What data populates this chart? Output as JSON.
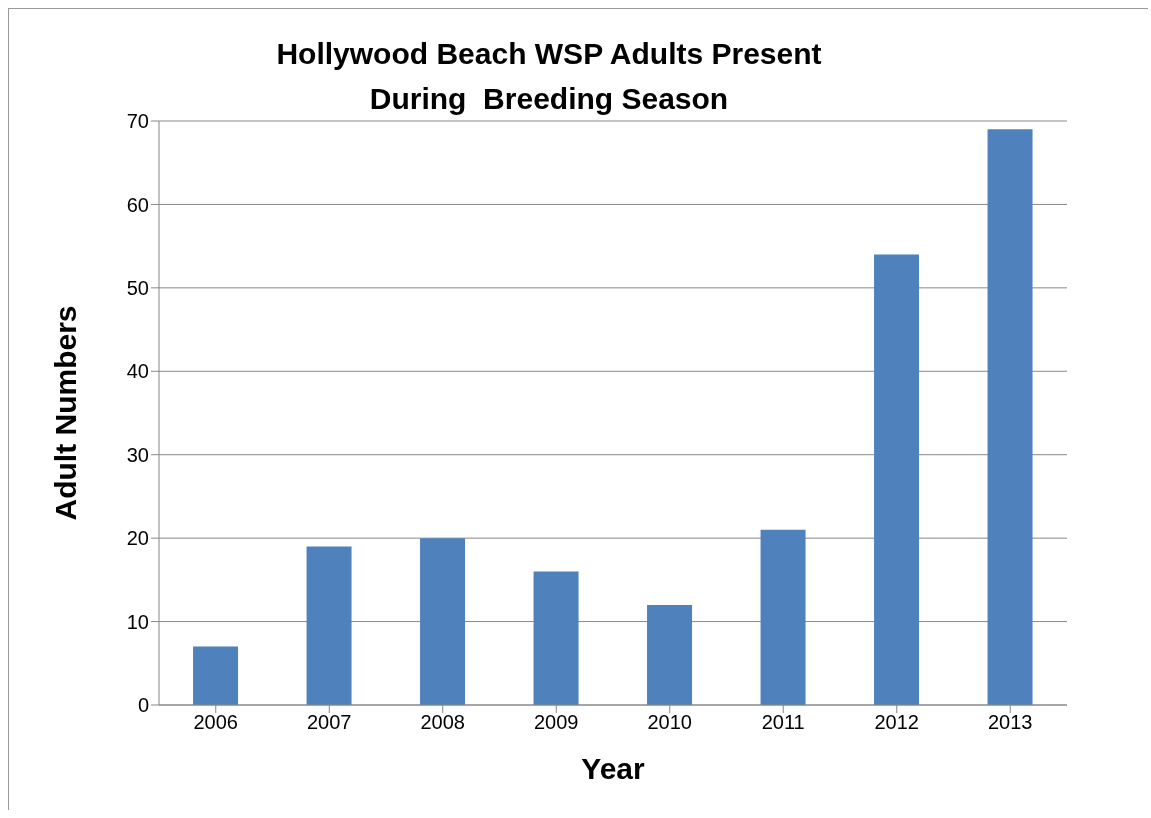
{
  "chart_data": {
    "type": "bar",
    "title": "Hollywood Beach WSP Adults Present\nDuring  Breeding Season",
    "xlabel": "Year",
    "ylabel": "Adult Numbers",
    "categories": [
      "2006",
      "2007",
      "2008",
      "2009",
      "2010",
      "2011",
      "2012",
      "2013"
    ],
    "values": [
      7,
      19,
      20,
      16,
      12,
      21,
      54,
      69
    ],
    "color": "#4f81bd",
    "ylim": [
      0,
      70
    ],
    "yticks": [
      0,
      10,
      20,
      30,
      40,
      50,
      60,
      70
    ],
    "grid": "y"
  }
}
